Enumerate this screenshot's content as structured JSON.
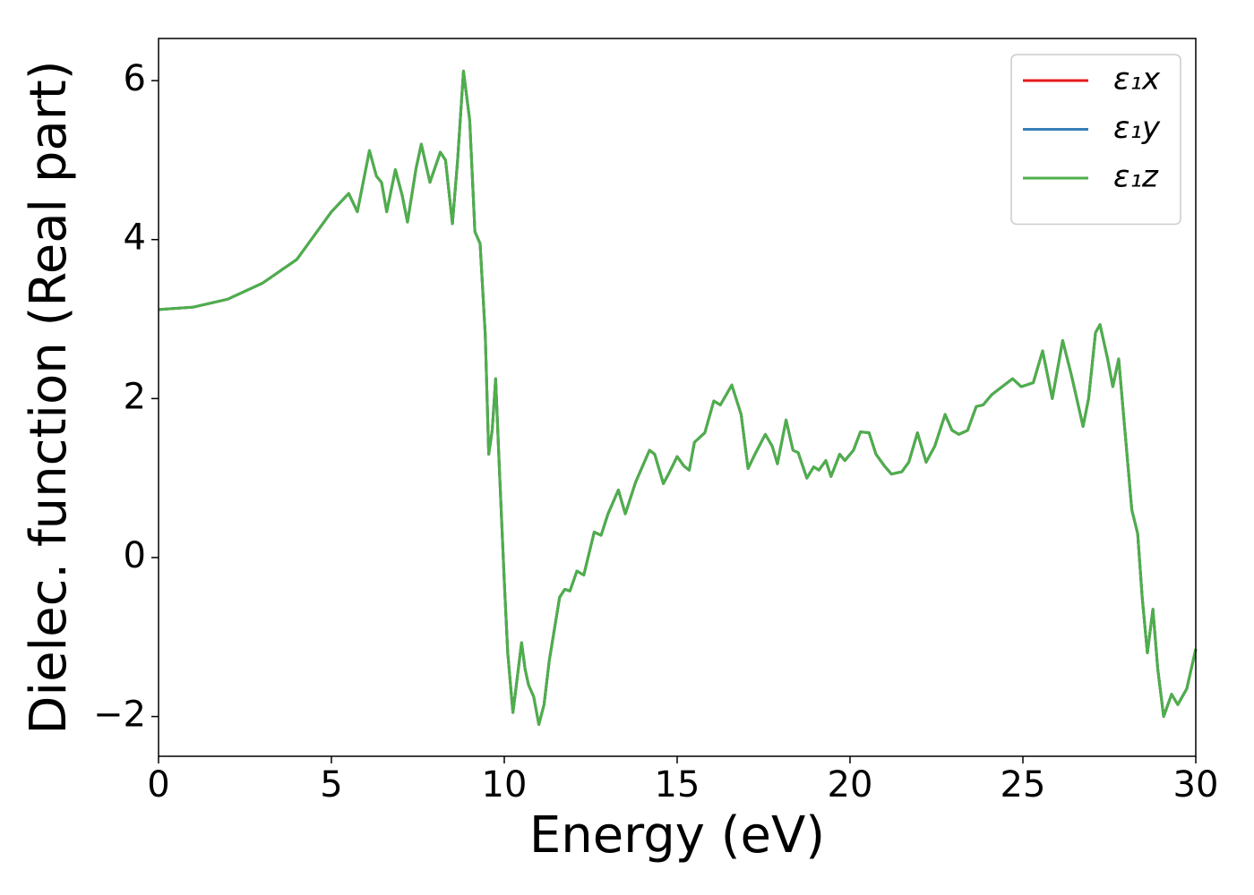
{
  "chart_data": {
    "type": "line",
    "xlabel": "Energy (eV)",
    "ylabel": "Dielec. function (Real part)",
    "x": [
      0,
      1,
      2,
      3,
      4,
      4.5,
      5,
      5.5,
      5.75,
      6.1,
      6.3,
      6.45,
      6.6,
      6.85,
      7.05,
      7.2,
      7.45,
      7.6,
      7.85,
      8.15,
      8.3,
      8.5,
      8.65,
      8.82,
      9.0,
      9.15,
      9.3,
      9.45,
      9.55,
      9.65,
      9.75,
      9.85,
      10.0,
      10.1,
      10.25,
      10.35,
      10.5,
      10.6,
      10.7,
      10.85,
      11.0,
      11.15,
      11.3,
      11.6,
      11.75,
      11.9,
      12.1,
      12.3,
      12.6,
      12.8,
      13.0,
      13.3,
      13.5,
      13.8,
      14.2,
      14.35,
      14.6,
      14.75,
      15.0,
      15.2,
      15.35,
      15.5,
      15.8,
      16.06,
      16.25,
      16.58,
      16.85,
      17.05,
      17.25,
      17.55,
      17.75,
      17.9,
      18.15,
      18.35,
      18.5,
      18.75,
      18.95,
      19.1,
      19.3,
      19.45,
      19.7,
      19.85,
      20.1,
      20.3,
      20.55,
      20.75,
      21.0,
      21.2,
      21.5,
      21.7,
      21.95,
      22.2,
      22.45,
      22.75,
      22.95,
      23.15,
      23.4,
      23.65,
      23.85,
      24.1,
      24.4,
      24.7,
      24.95,
      25.1,
      25.3,
      25.57,
      25.85,
      26.15,
      26.4,
      26.74,
      26.9,
      27.1,
      27.23,
      27.45,
      27.6,
      27.77,
      27.95,
      28.15,
      28.32,
      28.45,
      28.6,
      28.76,
      28.9,
      29.07,
      29.3,
      29.48,
      29.74,
      30
    ],
    "series": [
      {
        "name": "ε₁x",
        "color": "#e41a1c",
        "values": [
          3.12,
          3.15,
          3.25,
          3.45,
          3.75,
          4.05,
          4.35,
          4.58,
          4.35,
          5.12,
          4.8,
          4.72,
          4.35,
          4.88,
          4.55,
          4.22,
          4.9,
          5.2,
          4.72,
          5.1,
          5.0,
          4.2,
          5.0,
          6.12,
          5.5,
          4.1,
          3.95,
          2.8,
          1.3,
          1.6,
          2.25,
          1.2,
          -0.3,
          -1.2,
          -1.95,
          -1.6,
          -1.07,
          -1.4,
          -1.6,
          -1.75,
          -2.1,
          -1.85,
          -1.3,
          -0.5,
          -0.4,
          -0.42,
          -0.17,
          -0.22,
          0.32,
          0.28,
          0.55,
          0.85,
          0.55,
          0.95,
          1.35,
          1.3,
          0.93,
          1.05,
          1.27,
          1.15,
          1.1,
          1.45,
          1.57,
          1.97,
          1.92,
          2.17,
          1.8,
          1.12,
          1.3,
          1.55,
          1.4,
          1.18,
          1.73,
          1.35,
          1.32,
          1.0,
          1.14,
          1.1,
          1.22,
          1.02,
          1.3,
          1.22,
          1.35,
          1.58,
          1.57,
          1.3,
          1.15,
          1.05,
          1.08,
          1.2,
          1.57,
          1.2,
          1.4,
          1.8,
          1.6,
          1.55,
          1.6,
          1.9,
          1.92,
          2.05,
          2.15,
          2.25,
          2.15,
          2.17,
          2.2,
          2.6,
          2.0,
          2.73,
          2.3,
          1.65,
          2.0,
          2.83,
          2.93,
          2.5,
          2.15,
          2.5,
          1.6,
          0.6,
          0.3,
          -0.5,
          -1.2,
          -0.65,
          -1.4,
          -2.0,
          -1.72,
          -1.85,
          -1.65,
          -1.15
        ]
      },
      {
        "name": "ε₁y",
        "color": "#377eb8",
        "values": [
          3.12,
          3.15,
          3.25,
          3.45,
          3.75,
          4.05,
          4.35,
          4.58,
          4.35,
          5.12,
          4.8,
          4.72,
          4.35,
          4.88,
          4.55,
          4.22,
          4.9,
          5.2,
          4.72,
          5.1,
          5.0,
          4.2,
          5.0,
          6.12,
          5.5,
          4.1,
          3.95,
          2.8,
          1.3,
          1.6,
          2.25,
          1.2,
          -0.3,
          -1.2,
          -1.95,
          -1.6,
          -1.07,
          -1.4,
          -1.6,
          -1.75,
          -2.1,
          -1.85,
          -1.3,
          -0.5,
          -0.4,
          -0.42,
          -0.17,
          -0.22,
          0.32,
          0.28,
          0.55,
          0.85,
          0.55,
          0.95,
          1.35,
          1.3,
          0.93,
          1.05,
          1.27,
          1.15,
          1.1,
          1.45,
          1.57,
          1.97,
          1.92,
          2.17,
          1.8,
          1.12,
          1.3,
          1.55,
          1.4,
          1.18,
          1.73,
          1.35,
          1.32,
          1.0,
          1.14,
          1.1,
          1.22,
          1.02,
          1.3,
          1.22,
          1.35,
          1.58,
          1.57,
          1.3,
          1.15,
          1.05,
          1.08,
          1.2,
          1.57,
          1.2,
          1.4,
          1.8,
          1.6,
          1.55,
          1.6,
          1.9,
          1.92,
          2.05,
          2.15,
          2.25,
          2.15,
          2.17,
          2.2,
          2.6,
          2.0,
          2.73,
          2.3,
          1.65,
          2.0,
          2.83,
          2.93,
          2.5,
          2.15,
          2.5,
          1.6,
          0.6,
          0.3,
          -0.5,
          -1.2,
          -0.65,
          -1.4,
          -2.0,
          -1.72,
          -1.85,
          -1.65,
          -1.15
        ]
      },
      {
        "name": "ε₁z",
        "color": "#4daf4a",
        "values": [
          3.12,
          3.15,
          3.25,
          3.45,
          3.75,
          4.05,
          4.35,
          4.58,
          4.35,
          5.12,
          4.8,
          4.72,
          4.35,
          4.88,
          4.55,
          4.22,
          4.9,
          5.2,
          4.72,
          5.1,
          5.0,
          4.2,
          5.0,
          6.12,
          5.5,
          4.1,
          3.95,
          2.8,
          1.3,
          1.6,
          2.25,
          1.2,
          -0.3,
          -1.2,
          -1.95,
          -1.6,
          -1.07,
          -1.4,
          -1.6,
          -1.75,
          -2.1,
          -1.85,
          -1.3,
          -0.5,
          -0.4,
          -0.42,
          -0.17,
          -0.22,
          0.32,
          0.28,
          0.55,
          0.85,
          0.55,
          0.95,
          1.35,
          1.3,
          0.93,
          1.05,
          1.27,
          1.15,
          1.1,
          1.45,
          1.57,
          1.97,
          1.92,
          2.17,
          1.8,
          1.12,
          1.3,
          1.55,
          1.4,
          1.18,
          1.73,
          1.35,
          1.32,
          1.0,
          1.14,
          1.1,
          1.22,
          1.02,
          1.3,
          1.22,
          1.35,
          1.58,
          1.57,
          1.3,
          1.15,
          1.05,
          1.08,
          1.2,
          1.57,
          1.2,
          1.4,
          1.8,
          1.6,
          1.55,
          1.6,
          1.9,
          1.92,
          2.05,
          2.15,
          2.25,
          2.15,
          2.17,
          2.2,
          2.6,
          2.0,
          2.73,
          2.3,
          1.65,
          2.0,
          2.83,
          2.93,
          2.5,
          2.15,
          2.5,
          1.6,
          0.6,
          0.3,
          -0.5,
          -1.2,
          -0.65,
          -1.4,
          -2.0,
          -1.72,
          -1.85,
          -1.65,
          -1.15
        ]
      }
    ],
    "xlim": [
      0,
      30
    ],
    "xticks": [
      0,
      5,
      10,
      15,
      20,
      25,
      30
    ],
    "ylim": [
      -2.5,
      6.53
    ],
    "yticks": [
      {
        "value": -2,
        "label": "−2"
      },
      0,
      2,
      4,
      6
    ],
    "grid": false,
    "legend": "upper right"
  }
}
